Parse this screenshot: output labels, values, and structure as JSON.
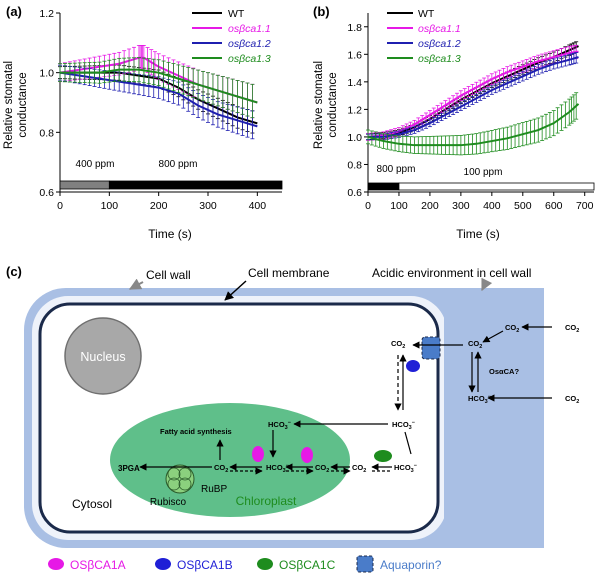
{
  "panel_labels": {
    "a": "(a)",
    "b": "(b)",
    "c": "(c)"
  },
  "legend_entries": [
    {
      "name": "WT",
      "color": "#000000"
    },
    {
      "name": "osβca1.1",
      "color": "#e619e6"
    },
    {
      "name": "osβca1.2",
      "color": "#1f1fb0"
    },
    {
      "name": "osβca1.3",
      "color": "#1e8c1e"
    }
  ],
  "chart_data": [
    {
      "type": "line",
      "panel": "(a)",
      "title": "",
      "xlabel": "Time (s)",
      "ylabel": "Relative stomatal conductance",
      "ylabel_lines": [
        "Relative stomatal",
        "conductance"
      ],
      "xlim": [
        0,
        450
      ],
      "ylim": [
        0.6,
        1.2
      ],
      "xticks": [
        0,
        100,
        200,
        300,
        400
      ],
      "yticks": [
        0.6,
        0.8,
        1.0,
        1.2
      ],
      "xtick_labels": [
        "0",
        "100",
        "200",
        "300",
        "400"
      ],
      "ytick_labels": [
        "0.6",
        "0.8",
        "1.0",
        "1.2"
      ],
      "treatment_bar": [
        {
          "label": "400 ppm",
          "start": 0,
          "end": 100,
          "fill": "#808080"
        },
        {
          "label": "800 ppm",
          "start": 100,
          "end": 450,
          "fill": "#000000"
        }
      ],
      "series": [
        {
          "name": "WT",
          "color": "#000000",
          "x": [
            0,
            40,
            80,
            120,
            160,
            200,
            240,
            280,
            320,
            360,
            400
          ],
          "y": [
            1.0,
            1.0,
            1.0,
            1.0,
            0.99,
            0.98,
            0.95,
            0.91,
            0.88,
            0.85,
            0.83
          ]
        },
        {
          "name": "osβca1.1",
          "color": "#e619e6",
          "x": [
            0,
            40,
            80,
            120,
            160,
            170,
            200,
            240,
            280,
            320,
            360,
            400
          ],
          "y": [
            1.0,
            1.01,
            1.02,
            1.03,
            1.05,
            1.05,
            1.02,
            0.99,
            0.96,
            0.94,
            0.92,
            0.9
          ]
        },
        {
          "name": "osβca1.2",
          "color": "#1f1fb0",
          "x": [
            0,
            40,
            80,
            120,
            160,
            200,
            240,
            280,
            320,
            360,
            400
          ],
          "y": [
            1.0,
            0.99,
            0.98,
            0.97,
            0.96,
            0.95,
            0.93,
            0.89,
            0.86,
            0.84,
            0.82
          ]
        },
        {
          "name": "osβca1.3",
          "color": "#1e8c1e",
          "x": [
            0,
            40,
            80,
            120,
            160,
            200,
            240,
            280,
            320,
            360,
            400
          ],
          "y": [
            1.0,
            1.0,
            1.0,
            1.01,
            1.01,
            1.0,
            0.98,
            0.96,
            0.94,
            0.92,
            0.9
          ]
        }
      ],
      "error": [
        0.04,
        0.06,
        0.05,
        0.06
      ]
    },
    {
      "type": "line",
      "panel": "(b)",
      "title": "",
      "xlabel": "Time (s)",
      "ylabel": "Relative stomatal conductance",
      "ylabel_lines": [
        "Relative stomatal",
        "conductance"
      ],
      "xlim": [
        0,
        730
      ],
      "ylim": [
        0.6,
        1.9
      ],
      "xticks": [
        0,
        100,
        200,
        300,
        400,
        500,
        600,
        700
      ],
      "yticks": [
        0.6,
        0.8,
        1.0,
        1.2,
        1.4,
        1.6,
        1.8
      ],
      "xtick_labels": [
        "0",
        "100",
        "200",
        "300",
        "400",
        "500",
        "600",
        "700"
      ],
      "ytick_labels": [
        "0.6",
        "0.8",
        "1.0",
        "1.2",
        "1.4",
        "1.6",
        "1.8"
      ],
      "treatment_bar": [
        {
          "label": "800 ppm",
          "start": 0,
          "end": 100,
          "fill": "#000000"
        },
        {
          "label": "100 ppm",
          "start": 100,
          "end": 730,
          "fill": "#ffffff"
        }
      ],
      "series": [
        {
          "name": "WT",
          "color": "#000000",
          "x": [
            0,
            50,
            100,
            150,
            200,
            250,
            300,
            350,
            400,
            450,
            500,
            550,
            600,
            650,
            680
          ],
          "y": [
            1.0,
            1.01,
            1.03,
            1.07,
            1.13,
            1.2,
            1.27,
            1.33,
            1.39,
            1.44,
            1.49,
            1.54,
            1.58,
            1.63,
            1.66
          ]
        },
        {
          "name": "osβca1.1",
          "color": "#e619e6",
          "x": [
            0,
            50,
            100,
            150,
            200,
            250,
            300,
            350,
            400,
            450,
            500,
            550,
            600,
            650,
            680
          ],
          "y": [
            1.0,
            1.01,
            1.04,
            1.09,
            1.16,
            1.23,
            1.3,
            1.36,
            1.42,
            1.47,
            1.51,
            1.55,
            1.58,
            1.61,
            1.62
          ]
        },
        {
          "name": "osβca1.2",
          "color": "#1f1fb0",
          "x": [
            0,
            50,
            100,
            150,
            200,
            250,
            300,
            350,
            400,
            450,
            500,
            550,
            600,
            650,
            680
          ],
          "y": [
            1.0,
            1.0,
            1.02,
            1.05,
            1.1,
            1.16,
            1.22,
            1.28,
            1.34,
            1.39,
            1.44,
            1.49,
            1.53,
            1.56,
            1.58
          ]
        },
        {
          "name": "osβca1.3",
          "color": "#1e8c1e",
          "x": [
            0,
            50,
            100,
            150,
            200,
            250,
            300,
            350,
            400,
            450,
            500,
            550,
            600,
            650,
            680
          ],
          "y": [
            1.0,
            0.97,
            0.95,
            0.94,
            0.94,
            0.94,
            0.94,
            0.95,
            0.97,
            0.99,
            1.02,
            1.05,
            1.1,
            1.18,
            1.24
          ]
        }
      ],
      "error": [
        0.04,
        0.05,
        0.04,
        0.1
      ]
    }
  ],
  "diagram": {
    "labels": {
      "cell_wall": "Cell wall",
      "cell_membrane": "Cell membrane",
      "acidic": "Acidic environment in cell wall",
      "nucleus": "Nucleus",
      "cytosol": "Cytosol",
      "chloroplast": "Chloroplast",
      "fatty_acid": "Fatty acid synthesis",
      "pga": "3PGA",
      "rubisco": "Rubisco",
      "rubp": "RuBP",
      "osaca": "OsαCA?"
    },
    "species": {
      "co2": "CO",
      "co2_sub": "2",
      "hco3": "HCO",
      "hco3_sub": "3",
      "minus": "−"
    }
  },
  "bottom_legend": [
    {
      "label": "OSβCA1A",
      "color": "#e619e6",
      "shape": "ellipse"
    },
    {
      "label": "OSβCA1B",
      "color": "#1f1fd6",
      "shape": "ellipse"
    },
    {
      "label": "OSβCA1C",
      "color": "#1e8c1e",
      "shape": "ellipse"
    },
    {
      "label": "Aquaporin?",
      "color": "#4a7cc9",
      "shape": "rect"
    }
  ]
}
